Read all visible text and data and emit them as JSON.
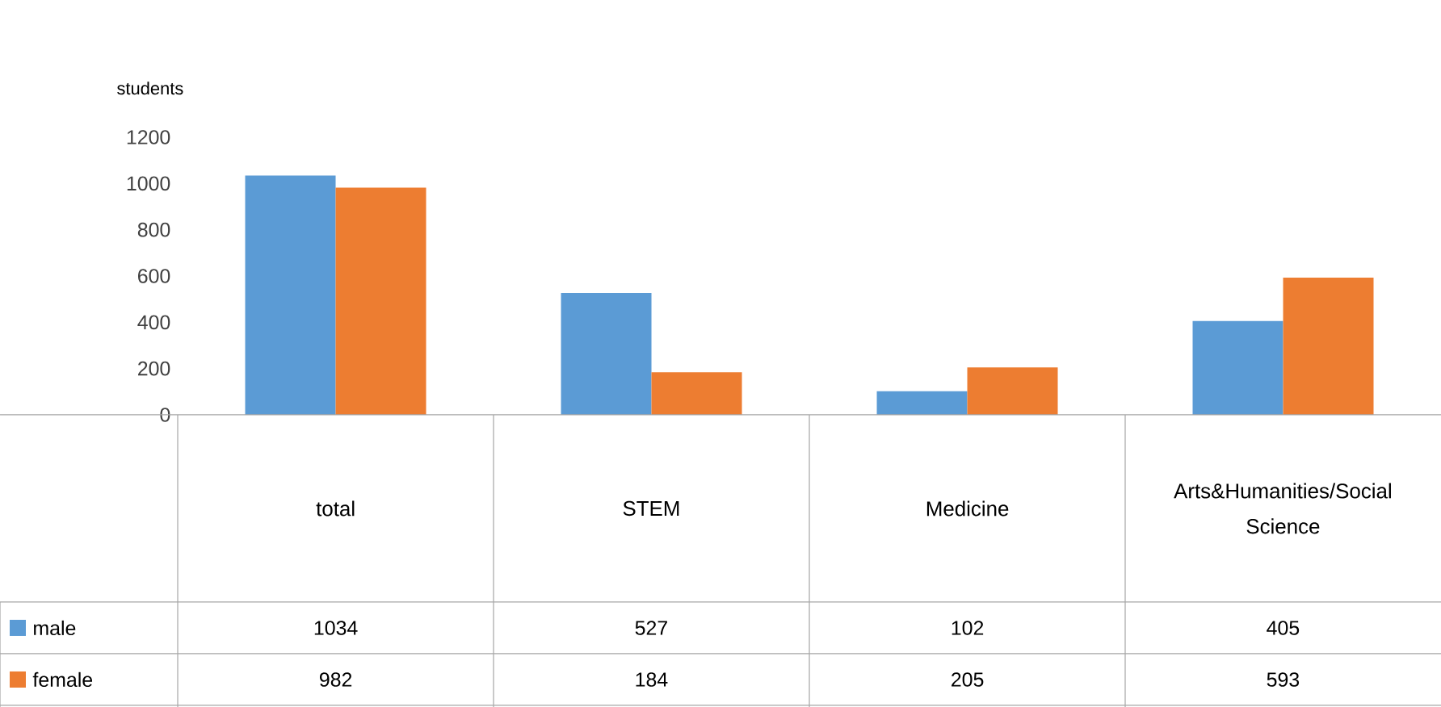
{
  "chart_data": {
    "type": "bar",
    "ylabel": "students",
    "categories": [
      "total",
      "STEM",
      "Medicine",
      "Arts&Humanities/Social Science"
    ],
    "series": [
      {
        "name": "male",
        "color": "#5b9bd5",
        "values": [
          1034,
          527,
          102,
          405
        ]
      },
      {
        "name": "female",
        "color": "#ed7d31",
        "values": [
          982,
          184,
          205,
          593
        ]
      }
    ],
    "ylim": [
      0,
      1200
    ],
    "yticks": [
      0,
      200,
      400,
      600,
      800,
      1000,
      1200
    ],
    "grid": false,
    "legend": "bottom",
    "data_labels": true
  }
}
